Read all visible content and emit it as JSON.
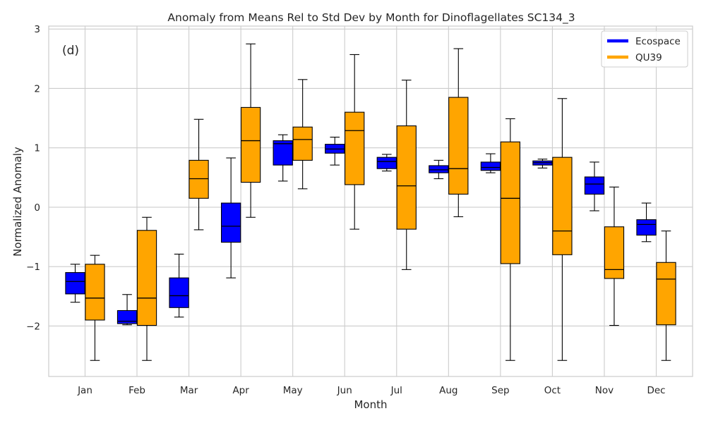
{
  "chart_data": {
    "type": "boxplot",
    "title": "Anomaly from Means Rel to Std Dev by Month for Dinoflagellates SC134_3",
    "xlabel": "Month",
    "ylabel": "Normalized Anomaly",
    "panel_label": "(d)",
    "categories": [
      "Jan",
      "Feb",
      "Mar",
      "Apr",
      "May",
      "Jun",
      "Jul",
      "Aug",
      "Sep",
      "Oct",
      "Nov",
      "Dec"
    ],
    "ylim": [
      -2.85,
      3.05
    ],
    "yticks": [
      -2,
      -1,
      0,
      1,
      2,
      3
    ],
    "ytick_labels": [
      "−2",
      "−1",
      "0",
      "1",
      "2",
      "3"
    ],
    "grid": true,
    "legend_position": "top-right",
    "series": [
      {
        "name": "Ecospace",
        "color": "#0000ff",
        "boxes": [
          {
            "whislo": -1.6,
            "q1": -1.46,
            "med": -1.25,
            "q3": -1.1,
            "whishi": -0.96
          },
          {
            "whislo": -1.98,
            "q1": -1.96,
            "med": -1.92,
            "q3": -1.74,
            "whishi": -1.47
          },
          {
            "whislo": -1.85,
            "q1": -1.69,
            "med": -1.49,
            "q3": -1.19,
            "whishi": -0.79
          },
          {
            "whislo": -1.19,
            "q1": -0.59,
            "med": -0.32,
            "q3": 0.07,
            "whishi": 0.83
          },
          {
            "whislo": 0.44,
            "q1": 0.71,
            "med": 1.07,
            "q3": 1.12,
            "whishi": 1.22
          },
          {
            "whislo": 0.71,
            "q1": 0.91,
            "med": 0.98,
            "q3": 1.06,
            "whishi": 1.18
          },
          {
            "whislo": 0.61,
            "q1": 0.65,
            "med": 0.77,
            "q3": 0.84,
            "whishi": 0.89
          },
          {
            "whislo": 0.48,
            "q1": 0.58,
            "med": 0.63,
            "q3": 0.7,
            "whishi": 0.79
          },
          {
            "whislo": 0.58,
            "q1": 0.62,
            "med": 0.67,
            "q3": 0.76,
            "whishi": 0.9
          },
          {
            "whislo": 0.66,
            "q1": 0.71,
            "med": 0.75,
            "q3": 0.78,
            "whishi": 0.81
          },
          {
            "whislo": -0.06,
            "q1": 0.22,
            "med": 0.39,
            "q3": 0.51,
            "whishi": 0.76
          },
          {
            "whislo": -0.58,
            "q1": -0.47,
            "med": -0.29,
            "q3": -0.21,
            "whishi": 0.07
          }
        ]
      },
      {
        "name": "QU39",
        "color": "#ffa500",
        "boxes": [
          {
            "whislo": -2.58,
            "q1": -1.9,
            "med": -1.53,
            "q3": -0.96,
            "whishi": -0.81
          },
          {
            "whislo": -2.58,
            "q1": -1.99,
            "med": -1.53,
            "q3": -0.39,
            "whishi": -0.17
          },
          {
            "whislo": -0.38,
            "q1": 0.15,
            "med": 0.48,
            "q3": 0.79,
            "whishi": 1.48
          },
          {
            "whislo": -0.17,
            "q1": 0.42,
            "med": 1.12,
            "q3": 1.68,
            "whishi": 2.75
          },
          {
            "whislo": 0.31,
            "q1": 0.79,
            "med": 1.14,
            "q3": 1.35,
            "whishi": 2.15
          },
          {
            "whislo": -0.37,
            "q1": 0.38,
            "med": 1.29,
            "q3": 1.6,
            "whishi": 2.57
          },
          {
            "whislo": -1.05,
            "q1": -0.37,
            "med": 0.36,
            "q3": 1.37,
            "whishi": 2.14
          },
          {
            "whislo": -0.16,
            "q1": 0.22,
            "med": 0.65,
            "q3": 1.85,
            "whishi": 2.67
          },
          {
            "whislo": -2.58,
            "q1": -0.95,
            "med": 0.15,
            "q3": 1.1,
            "whishi": 1.49
          },
          {
            "whislo": -2.58,
            "q1": -0.8,
            "med": -0.4,
            "q3": 0.84,
            "whishi": 1.83
          },
          {
            "whislo": -1.99,
            "q1": -1.2,
            "med": -1.05,
            "q3": -0.33,
            "whishi": 0.34
          },
          {
            "whislo": -2.58,
            "q1": -1.98,
            "med": -1.21,
            "q3": -0.93,
            "whishi": -0.4
          }
        ]
      }
    ]
  }
}
